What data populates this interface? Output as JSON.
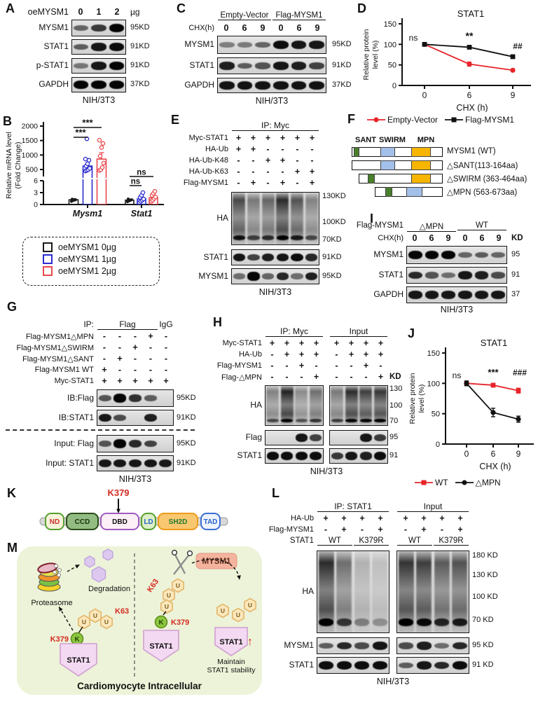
{
  "figure_labels": {
    "A": "A",
    "B": "B",
    "C": "C",
    "D": "D",
    "E": "E",
    "F": "F",
    "G": "G",
    "H": "H",
    "I": "I",
    "J": "J",
    "K": "K",
    "L": "L",
    "M": "M"
  },
  "panelA": {
    "header_label": "oeMYSM1",
    "doses": [
      "0",
      "1",
      "2"
    ],
    "unit": "µg",
    "blots": [
      {
        "name": "MYSM1",
        "kd": "95KD",
        "lanes": [
          0.45,
          0.7,
          1
        ]
      },
      {
        "name": "STAT1",
        "kd": "91KD",
        "lanes": [
          0.5,
          0.9,
          0.95
        ]
      },
      {
        "name": "p-STAT1",
        "kd": "91KD",
        "lanes": [
          0.35,
          0.9,
          1
        ]
      },
      {
        "name": "GAPDH",
        "kd": "37KD",
        "lanes": [
          1,
          1,
          1
        ]
      }
    ],
    "footer": "NIH/3T3"
  },
  "panelB": {
    "chart_data": {
      "type": "bar",
      "ylabel_line1": "Relative mRNA level",
      "ylabel_line2": "(Fold Change)",
      "upper_ticks": [
        500,
        1000,
        1500,
        2000
      ],
      "lower_ticks": [
        0,
        3,
        6
      ],
      "categories": [
        "Mysm1",
        "Stat1"
      ],
      "groups": [
        "oeMYSM1 0µg",
        "oeMYSM1 1µg",
        "oeMYSM1 2µg"
      ],
      "colors": [
        "#1a1a1a",
        "#2b2bd0",
        "#e8494d"
      ],
      "bars": {
        "Mysm1": [
          1.2,
          620,
          860
        ],
        "Stat1": [
          1.1,
          1.4,
          1.7
        ]
      },
      "errors": {
        "Mysm1": [
          0.3,
          200,
          220
        ],
        "Stat1": [
          0.3,
          0.6,
          0.7
        ]
      },
      "points": {
        "Mysm1": [
          [
            0.8,
            1,
            1.1,
            1.2,
            1.35
          ],
          [
            320,
            400,
            470,
            540,
            620,
            700,
            820,
            860,
            1560
          ],
          [
            390,
            480,
            570,
            720,
            960,
            1260,
            1400,
            1510
          ]
        ],
        "Stat1": [
          [
            0.7,
            0.9,
            1.05,
            1.2,
            1.4
          ],
          [
            0.5,
            0.8,
            1.1,
            1.4,
            1.8,
            2.3,
            3
          ],
          [
            0.8,
            1.1,
            1.5,
            1.9,
            2.3,
            2.8,
            3.3
          ]
        ]
      },
      "significance": [
        {
          "text": "***",
          "category": "Mysm1",
          "from": 0,
          "to": 2
        },
        {
          "text": "***",
          "category": "Mysm1",
          "from": 0,
          "to": 1
        },
        {
          "text": "ns",
          "category": "Stat1",
          "from": 0,
          "to": 2
        },
        {
          "text": "ns",
          "category": "Stat1",
          "from": 0,
          "to": 1
        }
      ]
    },
    "legend": [
      "oeMYSM1 0µg",
      "oeMYSM1 1µg",
      "oeMYSM1 2µg"
    ]
  },
  "panelC": {
    "groups": [
      "Empty-Vector",
      "Flag-MYSM1"
    ],
    "chx_label": "CHX(h)",
    "chx_values": [
      "0",
      "6",
      "9",
      "0",
      "6",
      "9"
    ],
    "blots": [
      {
        "name": "MYSM1",
        "kd": "95KD",
        "lanes": [
          0.3,
          0.32,
          0.45,
          0.95,
          0.9,
          0.9
        ]
      },
      {
        "name": "STAT1",
        "kd": "91KD",
        "lanes": [
          0.85,
          0.5,
          0.55,
          0.9,
          0.85,
          0.65
        ]
      },
      {
        "name": "GAPDH",
        "kd": "37KD",
        "lanes": [
          0.92,
          0.92,
          0.92,
          0.92,
          0.92,
          0.92
        ]
      }
    ],
    "footer": "NIH/3T3"
  },
  "panelD": {
    "chart_data": {
      "type": "line",
      "title": "STAT1",
      "ylabel_line1": "Relative protein",
      "ylabel_line2": "level (%)",
      "xlabel": "CHX (h)",
      "yticks": [
        0,
        50,
        100,
        150
      ],
      "x": [
        0,
        6,
        9
      ],
      "series": [
        {
          "name": "Empty-Vector",
          "color": "#e8252a",
          "marker": "circle",
          "values": [
            100,
            52,
            37
          ],
          "errors": [
            3,
            5,
            3
          ]
        },
        {
          "name": "Flag-MYSM1",
          "color": "#111111",
          "marker": "square",
          "values": [
            100,
            93,
            70
          ],
          "errors": [
            3,
            4,
            4
          ]
        }
      ],
      "annotations": [
        "ns",
        "**",
        "##"
      ]
    }
  },
  "panelE": {
    "ip_label": "IP: Myc",
    "conditions": [
      {
        "label": "Myc-STAT1",
        "values": [
          "+",
          "+",
          "+",
          "+",
          "+",
          "+"
        ]
      },
      {
        "label": "HA-Ub",
        "values": [
          "+",
          "+",
          "-",
          "-",
          "-",
          "-"
        ]
      },
      {
        "label": "HA-Ub-K48",
        "values": [
          "-",
          "-",
          "+",
          "+",
          "-",
          "-"
        ]
      },
      {
        "label": "HA-Ub-K63",
        "values": [
          "-",
          "-",
          "-",
          "-",
          "+",
          "+"
        ]
      },
      {
        "label": "Flag-MYSM1",
        "values": [
          "-",
          "+",
          "-",
          "+",
          "-",
          "+"
        ]
      }
    ],
    "blots": [
      {
        "name": "HA",
        "type": "smear",
        "kd_marks": [
          "130KD",
          "100KD",
          "70KD"
        ],
        "lanes": [
          0.8,
          0.55,
          0.65,
          0.95,
          0.75,
          0.5
        ]
      },
      {
        "name": "STAT1",
        "kd": "91KD",
        "lanes": [
          0.9,
          0.65,
          0.85,
          0.9,
          0.95,
          0.8
        ]
      },
      {
        "name": "MYSM1",
        "kd": "95KD",
        "lanes": [
          0.4,
          1,
          0.45,
          0.8,
          0.4,
          0.85
        ]
      }
    ],
    "footer": "NIH/3T3"
  },
  "panelF": {
    "domains": [
      {
        "name": "SANT",
        "color": "#4a7f2c"
      },
      {
        "name": "SWIRM",
        "color": "#a3c0ea"
      },
      {
        "name": "MPN",
        "color": "#f7b500"
      }
    ],
    "constructs": [
      {
        "label": "MYSM1 (WT)"
      },
      {
        "label": "△SANT(113-164aa)"
      },
      {
        "label": "△SWIRM (363-464aa)"
      },
      {
        "label": "△MPN (563-673aa)"
      }
    ]
  },
  "panelG": {
    "ip_label": "IP:",
    "ip_groups": [
      "Flag",
      "IgG"
    ],
    "conditions": [
      {
        "label": "Flag-MYSM1△MPN",
        "values": [
          "-",
          "-",
          "-",
          "+",
          "-"
        ]
      },
      {
        "label": "Flag-MYSM1△SWIRM",
        "values": [
          "-",
          "-",
          "+",
          "-",
          "-"
        ]
      },
      {
        "label": "Flag-MYSM1△SANT",
        "values": [
          "-",
          "+",
          "-",
          "-",
          "-"
        ]
      },
      {
        "label": "Flag-MYSM1 WT",
        "values": [
          "+",
          "-",
          "-",
          "-",
          "-"
        ]
      },
      {
        "label": "Myc-STAT1",
        "values": [
          "+",
          "+",
          "+",
          "+",
          "+"
        ]
      }
    ],
    "blots": [
      {
        "name": "IB:Flag",
        "kd": "95KD",
        "lanes": [
          0.55,
          1,
          0.75,
          0.5,
          0.02
        ]
      },
      {
        "name": "IB:STAT1",
        "kd": "91KD",
        "lanes": [
          0.9,
          0.6,
          0.04,
          0.85,
          0.02
        ]
      },
      {
        "name": "Input: Flag",
        "kd": "95KD",
        "lanes": [
          0.55,
          1,
          0.8,
          0.65,
          0.02
        ]
      },
      {
        "name": "Input: STAT1",
        "kd": "91KD",
        "lanes": [
          0.9,
          0.9,
          0.9,
          0.9,
          0.88
        ]
      }
    ],
    "footer": "NIH/3T3"
  },
  "panelH": {
    "sections": [
      "IP: Myc",
      "Input"
    ],
    "kd_header": "KD",
    "conditions": [
      {
        "label": "Myc-STAT1",
        "values": [
          "+",
          "+",
          "+",
          "+",
          "+",
          "+",
          "+",
          "+"
        ]
      },
      {
        "label": "HA-Ub",
        "values": [
          "-",
          "+",
          "+",
          "+",
          "-",
          "+",
          "+",
          "+"
        ]
      },
      {
        "label": "Flag-MYSM1",
        "values": [
          "-",
          "-",
          "+",
          "-",
          "-",
          "-",
          "+",
          "-"
        ]
      },
      {
        "label": "Flag-△MPN",
        "values": [
          "-",
          "-",
          "-",
          "+",
          "-",
          "-",
          "-",
          "+"
        ]
      }
    ],
    "blots": [
      {
        "name": "HA",
        "type": "smear",
        "kd_marks": [
          "130",
          "100",
          "70"
        ],
        "lanes": [
          0.5,
          1,
          0.45,
          0.6,
          0.55,
          0.95,
          0.85,
          0.9
        ]
      },
      {
        "name": "Flag",
        "kd": "95",
        "lanes": [
          0,
          0,
          0.9,
          0.65,
          0,
          0,
          0.9,
          0.7
        ]
      },
      {
        "name": "STAT1",
        "kd": "91",
        "lanes": [
          0.95,
          0.95,
          0.95,
          0.95,
          0.7,
          0.9,
          0.85,
          0.95
        ]
      }
    ],
    "footer": "NIH/3T3"
  },
  "panelI": {
    "header_label": "Flag-MYSM1",
    "groups": [
      "△MPN",
      "WT"
    ],
    "chx_label": "CHX(h)",
    "chx_values": [
      "0",
      "6",
      "9",
      "0",
      "6",
      "9"
    ],
    "kd_header": "KD",
    "blots": [
      {
        "name": "MYSM1",
        "kd": "95",
        "lanes": [
          1,
          1,
          1,
          0.45,
          0.5,
          0.45
        ]
      },
      {
        "name": "STAT1",
        "kd": "91",
        "lanes": [
          0.8,
          0.55,
          0.4,
          0.9,
          0.85,
          0.6
        ]
      },
      {
        "name": "GAPDH",
        "kd": "37",
        "lanes": [
          0.9,
          0.9,
          0.9,
          0.9,
          0.9,
          0.9
        ]
      }
    ],
    "footer": "NIH/3T3"
  },
  "panelJ": {
    "chart_data": {
      "type": "line",
      "title": "STAT1",
      "ylabel_line1": "Relative protein",
      "ylabel_line2": "level (%)",
      "xlabel": "CHX (h)",
      "yticks": [
        0,
        50,
        100,
        150
      ],
      "x": [
        0,
        6,
        9
      ],
      "series": [
        {
          "name": "WT",
          "color": "#e8252a",
          "marker": "square",
          "values": [
            100,
            97,
            88
          ],
          "errors": [
            2,
            3,
            4
          ]
        },
        {
          "name": "△MPN",
          "color": "#111111",
          "marker": "circle",
          "values": [
            100,
            52,
            41
          ],
          "errors": [
            4,
            7,
            5
          ]
        }
      ],
      "annotations": [
        "ns",
        "***",
        "###"
      ]
    }
  },
  "panelK": {
    "site_label": "K379",
    "domains": [
      {
        "name": "ND",
        "fill": "#f7f3da",
        "stroke": "#56a12f",
        "text_color": "#c8302e"
      },
      {
        "name": "CCD",
        "fill": "#93bc82",
        "stroke": "#2c4d1b",
        "text_color": "#17320c"
      },
      {
        "name": "DBD",
        "fill": "#fdf0f6",
        "stroke": "#a05cc0",
        "text_color": "#111111"
      },
      {
        "name": "LD",
        "fill": "#ddefc8",
        "stroke": "#56a12f",
        "text_color": "#2763c9"
      },
      {
        "name": "SH2D",
        "fill": "#f9c76f",
        "stroke": "#ef9c1c",
        "text_color": "#1f7a33"
      },
      {
        "name": "TAD",
        "fill": "#eef3fc",
        "stroke": "#3b6fd4",
        "text_color": "#2763c9"
      }
    ]
  },
  "panelL": {
    "sections": [
      "IP: STAT1",
      "Input"
    ],
    "conditions": [
      {
        "label": "HA-Ub",
        "values": [
          "+",
          "+",
          "+",
          "+",
          "+",
          "+",
          "+",
          "+"
        ]
      },
      {
        "label": "Flag-MYSM1",
        "values": [
          "-",
          "+",
          "-",
          "+",
          "-",
          "+",
          "-",
          "+"
        ]
      }
    ],
    "stat1_label": "STAT1",
    "stat1_groups": [
      "WT",
      "K379R",
      "WT",
      "K379R"
    ],
    "blots": [
      {
        "name": "HA",
        "type": "smear",
        "kd_marks": [
          "180 KD",
          "130 KD",
          "100 KD",
          "70 KD"
        ],
        "lanes": [
          0.95,
          0.6,
          0.25,
          0.18,
          0.9,
          0.85,
          0.7,
          0.75
        ]
      },
      {
        "name": "MYSM1",
        "kd": "95 KD",
        "lanes": [
          0.5,
          0.8,
          0.6,
          0.9,
          0.6,
          0.85,
          0.4,
          0.8
        ]
      },
      {
        "name": "STAT1",
        "kd": "91 KD",
        "lanes": [
          0.95,
          0.95,
          0.95,
          0.95,
          0.5,
          0.9,
          0.8,
          0.95
        ]
      }
    ],
    "footer": "NIH/3T3"
  },
  "panelM": {
    "proteasome": "Proteasome",
    "degradation": "Degradation",
    "k379": "K379",
    "k63": "K63",
    "k_letter": "K",
    "u_letter": "U",
    "stat1": "STAT1",
    "mysm1": "MYSM1",
    "maintain_line1": "Maintain",
    "maintain_line2": "STAT1 stability",
    "up_arrow": "↑",
    "footer": "Cardiomyocyte Intracellular",
    "colors": {
      "bg": "#edf3d8",
      "ub_fill": "#fbe7bb",
      "ub_stroke": "#e2b264",
      "k_fill": "#8cc63e",
      "stat1_fill": "#f3d9f1",
      "stat1_stroke": "#cf9fd1",
      "mysm1_fill": "#f4b39e",
      "red": "#d42a20",
      "purple": "#ddc9f0"
    }
  }
}
